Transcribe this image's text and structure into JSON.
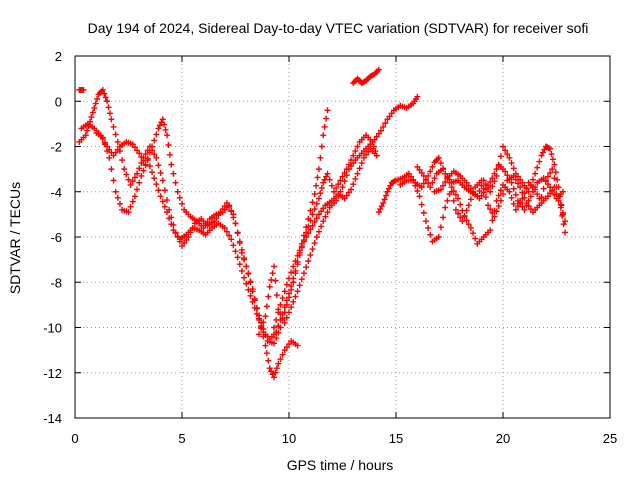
{
  "chart_data": {
    "type": "scatter",
    "title": "Day 194 of 2024, Sidereal Day-to-day VTEC variation (SDTVAR) for receiver sofi",
    "xlabel": "GPS time / hours",
    "ylabel": "SDTVAR / TECUs",
    "xlim": [
      0,
      25
    ],
    "ylim": [
      -14,
      2
    ],
    "xticks": [
      "0",
      "5",
      "10",
      "15",
      "20",
      "25"
    ],
    "yticks": [
      "2",
      "0",
      "-2",
      "-4",
      "-6",
      "-8",
      "-10",
      "-12",
      "-14"
    ],
    "grid": true,
    "marker": "+",
    "series": [
      {
        "color": "#ff0000",
        "points": [
          [
            0.2,
            0.5
          ],
          [
            0.4,
            0.5
          ]
        ]
      },
      {
        "color": "#ff0000",
        "points": [
          [
            0.2,
            -1.8
          ],
          [
            0.5,
            -1.5
          ],
          [
            0.7,
            -0.9
          ],
          [
            0.9,
            -0.3
          ],
          [
            1.1,
            0.3
          ],
          [
            1.3,
            0.5
          ],
          [
            1.5,
            0.0
          ],
          [
            1.7,
            -0.8
          ],
          [
            2.0,
            -1.8
          ],
          [
            2.3,
            -3.0
          ],
          [
            2.6,
            -3.7
          ],
          [
            2.9,
            -3.2
          ],
          [
            3.2,
            -2.5
          ],
          [
            3.5,
            -2.0
          ],
          [
            3.8,
            -2.5
          ],
          [
            4.1,
            -3.5
          ],
          [
            4.4,
            -4.8
          ],
          [
            4.7,
            -5.8
          ],
          [
            5.0,
            -6.4
          ],
          [
            5.3,
            -6.0
          ],
          [
            5.6,
            -5.4
          ],
          [
            5.9,
            -5.2
          ],
          [
            6.2,
            -5.5
          ],
          [
            6.5,
            -5.3
          ],
          [
            6.8,
            -4.9
          ],
          [
            7.1,
            -4.5
          ],
          [
            7.4,
            -5.0
          ],
          [
            7.7,
            -6.2
          ],
          [
            8.0,
            -7.3
          ],
          [
            8.3,
            -8.3
          ],
          [
            8.6,
            -9.6
          ],
          [
            8.9,
            -10.8
          ],
          [
            9.1,
            -11.8
          ],
          [
            9.3,
            -12.2
          ],
          [
            9.5,
            -11.6
          ],
          [
            9.8,
            -11.0
          ],
          [
            10.1,
            -10.6
          ],
          [
            10.4,
            -10.8
          ]
        ]
      },
      {
        "color": "#ff0000",
        "points": [
          [
            0.3,
            -1.2
          ],
          [
            0.6,
            -1.0
          ],
          [
            0.9,
            -1.2
          ],
          [
            1.2,
            -1.5
          ],
          [
            1.5,
            -2.0
          ],
          [
            1.8,
            -2.4
          ],
          [
            2.1,
            -2.0
          ],
          [
            2.4,
            -1.8
          ],
          [
            2.7,
            -1.9
          ],
          [
            3.0,
            -2.3
          ],
          [
            3.3,
            -2.8
          ],
          [
            3.6,
            -2.0
          ],
          [
            3.9,
            -1.2
          ],
          [
            4.1,
            -0.8
          ],
          [
            4.3,
            -1.5
          ],
          [
            4.5,
            -2.8
          ],
          [
            4.8,
            -4.0
          ],
          [
            5.1,
            -4.8
          ],
          [
            5.4,
            -5.1
          ],
          [
            5.7,
            -5.3
          ],
          [
            6.0,
            -5.6
          ],
          [
            6.3,
            -5.2
          ],
          [
            6.6,
            -5.0
          ],
          [
            6.9,
            -4.9
          ],
          [
            7.2,
            -4.6
          ],
          [
            7.5,
            -5.4
          ],
          [
            7.8,
            -6.7
          ],
          [
            8.1,
            -7.6
          ],
          [
            8.4,
            -8.8
          ],
          [
            8.7,
            -9.8
          ],
          [
            9.0,
            -10.6
          ],
          [
            9.3,
            -10.7
          ],
          [
            9.6,
            -10.0
          ],
          [
            9.9,
            -9.0
          ],
          [
            10.2,
            -8.0
          ],
          [
            10.5,
            -6.8
          ],
          [
            10.8,
            -5.8
          ],
          [
            11.1,
            -5.0
          ],
          [
            11.4,
            -4.3
          ],
          [
            11.6,
            -3.6
          ],
          [
            11.8,
            -3.2
          ],
          [
            12.1,
            -4.0
          ],
          [
            12.4,
            -3.5
          ],
          [
            12.7,
            -3.0
          ],
          [
            13.0,
            -2.4
          ],
          [
            13.3,
            -1.8
          ],
          [
            13.6,
            -1.5
          ],
          [
            13.9,
            -1.8
          ],
          [
            14.1,
            -2.4
          ]
        ]
      },
      {
        "color": "#ff0000",
        "points": [
          [
            1.0,
            -1.4
          ],
          [
            1.3,
            -1.6
          ],
          [
            1.6,
            -2.5
          ],
          [
            1.9,
            -4.0
          ],
          [
            2.2,
            -4.8
          ],
          [
            2.5,
            -4.9
          ],
          [
            2.8,
            -4.2
          ],
          [
            3.1,
            -3.3
          ],
          [
            3.4,
            -2.6
          ],
          [
            3.7,
            -3.4
          ],
          [
            4.0,
            -4.2
          ],
          [
            4.3,
            -4.9
          ],
          [
            4.6,
            -5.7
          ],
          [
            4.9,
            -6.1
          ],
          [
            5.2,
            -5.9
          ],
          [
            5.5,
            -5.6
          ],
          [
            5.8,
            -5.7
          ],
          [
            6.1,
            -5.9
          ],
          [
            6.4,
            -5.6
          ],
          [
            6.7,
            -5.4
          ],
          [
            7.0,
            -5.6
          ],
          [
            7.3,
            -6.1
          ],
          [
            7.6,
            -6.9
          ],
          [
            7.9,
            -7.8
          ],
          [
            8.2,
            -8.6
          ],
          [
            8.5,
            -9.4
          ],
          [
            8.8,
            -10.2
          ],
          [
            9.1,
            -10.5
          ],
          [
            9.4,
            -10.2
          ],
          [
            9.7,
            -9.4
          ],
          [
            10.0,
            -8.5
          ],
          [
            10.3,
            -7.5
          ],
          [
            10.6,
            -6.3
          ],
          [
            10.9,
            -5.2
          ],
          [
            11.2,
            -4.1
          ],
          [
            11.4,
            -3.0
          ],
          [
            11.6,
            -1.5
          ],
          [
            11.8,
            -0.4
          ]
        ]
      },
      {
        "color": "#ff0000",
        "points": [
          [
            8.6,
            -10.3
          ],
          [
            8.9,
            -9.5
          ],
          [
            9.1,
            -8.2
          ],
          [
            9.3,
            -7.3
          ],
          [
            9.5,
            -9.2
          ],
          [
            9.8,
            -9.8
          ],
          [
            10.1,
            -9.1
          ],
          [
            10.4,
            -8.4
          ],
          [
            10.7,
            -7.6
          ],
          [
            11.0,
            -6.8
          ],
          [
            11.3,
            -6.0
          ],
          [
            11.6,
            -5.3
          ],
          [
            11.9,
            -4.7
          ],
          [
            12.2,
            -4.4
          ],
          [
            12.5,
            -3.8
          ],
          [
            12.8,
            -3.0
          ],
          [
            13.1,
            -2.6
          ],
          [
            13.4,
            -2.3
          ],
          [
            13.7,
            -2.0
          ],
          [
            14.0,
            -1.7
          ],
          [
            14.3,
            -1.3
          ],
          [
            14.6,
            -0.8
          ],
          [
            14.9,
            -0.4
          ],
          [
            15.2,
            -0.2
          ],
          [
            15.5,
            -0.3
          ],
          [
            15.8,
            -0.1
          ],
          [
            16.0,
            0.2
          ]
        ]
      },
      {
        "color": "#ff0000",
        "points": [
          [
            9.3,
            -10.0
          ],
          [
            9.6,
            -9.0
          ],
          [
            9.9,
            -8.1
          ],
          [
            10.2,
            -7.3
          ],
          [
            10.5,
            -6.6
          ],
          [
            10.8,
            -6.0
          ],
          [
            11.1,
            -5.5
          ],
          [
            11.4,
            -5.0
          ],
          [
            11.7,
            -4.6
          ],
          [
            12.0,
            -4.4
          ],
          [
            12.3,
            -4.1
          ],
          [
            12.6,
            -4.3
          ],
          [
            12.9,
            -3.9
          ],
          [
            13.2,
            -3.2
          ],
          [
            13.5,
            -2.5
          ],
          [
            13.8,
            -2.1
          ],
          [
            14.1,
            -2.4
          ]
        ]
      },
      {
        "color": "#ff0000",
        "points": [
          [
            13.0,
            0.8
          ],
          [
            13.2,
            1.0
          ],
          [
            13.4,
            0.8
          ],
          [
            13.6,
            0.9
          ],
          [
            13.8,
            1.1
          ],
          [
            14.0,
            1.2
          ],
          [
            14.2,
            1.4
          ]
        ]
      },
      {
        "color": "#ff0000",
        "points": [
          [
            14.2,
            -4.9
          ],
          [
            14.4,
            -4.5
          ],
          [
            14.6,
            -4.0
          ],
          [
            14.8,
            -3.6
          ],
          [
            15.0,
            -3.5
          ],
          [
            15.3,
            -3.4
          ],
          [
            15.6,
            -3.2
          ],
          [
            15.9,
            -3.6
          ],
          [
            16.2,
            -3.8
          ],
          [
            16.5,
            -3.3
          ],
          [
            16.8,
            -2.7
          ],
          [
            17.0,
            -2.5
          ],
          [
            17.3,
            -3.2
          ],
          [
            17.6,
            -3.6
          ],
          [
            17.9,
            -3.5
          ],
          [
            18.2,
            -3.8
          ],
          [
            18.5,
            -4.0
          ],
          [
            18.8,
            -4.2
          ],
          [
            19.1,
            -3.5
          ],
          [
            19.4,
            -4.0
          ],
          [
            19.7,
            -3.3
          ],
          [
            20.0,
            -2.0
          ],
          [
            20.3,
            -2.5
          ],
          [
            20.6,
            -3.2
          ],
          [
            20.9,
            -3.6
          ],
          [
            21.2,
            -4.0
          ],
          [
            21.5,
            -3.2
          ],
          [
            21.8,
            -2.4
          ],
          [
            22.0,
            -2.0
          ],
          [
            22.2,
            -2.1
          ],
          [
            22.4,
            -2.8
          ],
          [
            22.6,
            -3.8
          ],
          [
            22.8,
            -5.0
          ]
        ]
      },
      {
        "color": "#ff0000",
        "points": [
          [
            15.2,
            -3.7
          ],
          [
            15.5,
            -3.5
          ],
          [
            15.8,
            -3.5
          ],
          [
            16.1,
            -4.2
          ],
          [
            16.4,
            -5.3
          ],
          [
            16.7,
            -6.2
          ],
          [
            17.0,
            -6.0
          ],
          [
            17.3,
            -4.7
          ],
          [
            17.6,
            -3.8
          ],
          [
            17.9,
            -4.3
          ],
          [
            18.2,
            -5.1
          ],
          [
            18.5,
            -5.6
          ],
          [
            18.8,
            -6.3
          ],
          [
            19.1,
            -6.0
          ],
          [
            19.4,
            -5.7
          ],
          [
            19.7,
            -4.4
          ],
          [
            20.0,
            -3.7
          ],
          [
            20.3,
            -4.0
          ],
          [
            20.6,
            -4.8
          ],
          [
            20.9,
            -4.3
          ],
          [
            21.2,
            -3.6
          ],
          [
            21.5,
            -3.9
          ],
          [
            21.8,
            -4.5
          ],
          [
            22.1,
            -4.2
          ],
          [
            22.4,
            -3.8
          ],
          [
            22.7,
            -4.7
          ],
          [
            22.9,
            -5.8
          ]
        ]
      },
      {
        "color": "#ff0000",
        "points": [
          [
            16.0,
            -2.9
          ],
          [
            16.3,
            -3.3
          ],
          [
            16.6,
            -3.8
          ],
          [
            16.9,
            -3.2
          ],
          [
            17.2,
            -3.0
          ],
          [
            17.5,
            -3.6
          ],
          [
            17.8,
            -4.8
          ],
          [
            18.1,
            -5.3
          ],
          [
            18.4,
            -4.6
          ],
          [
            18.7,
            -3.8
          ],
          [
            19.0,
            -3.5
          ],
          [
            19.3,
            -4.6
          ],
          [
            19.6,
            -5.1
          ],
          [
            19.9,
            -4.4
          ],
          [
            20.2,
            -3.5
          ],
          [
            20.5,
            -3.3
          ],
          [
            20.8,
            -3.8
          ],
          [
            21.1,
            -4.5
          ],
          [
            21.4,
            -4.9
          ],
          [
            21.7,
            -4.6
          ],
          [
            22.0,
            -3.5
          ],
          [
            22.3,
            -3.0
          ],
          [
            22.6,
            -4.2
          ],
          [
            22.9,
            -5.3
          ]
        ]
      },
      {
        "color": "#ff0000",
        "points": [
          [
            16.8,
            -4.0
          ],
          [
            17.1,
            -3.9
          ],
          [
            17.4,
            -3.4
          ],
          [
            17.7,
            -3.1
          ],
          [
            18.0,
            -3.3
          ],
          [
            18.3,
            -3.6
          ],
          [
            18.6,
            -4.0
          ],
          [
            18.9,
            -4.3
          ],
          [
            19.2,
            -3.9
          ],
          [
            19.5,
            -3.4
          ],
          [
            19.8,
            -2.8
          ],
          [
            20.1,
            -3.1
          ],
          [
            20.4,
            -3.6
          ],
          [
            20.7,
            -4.4
          ],
          [
            21.0,
            -4.8
          ],
          [
            21.3,
            -4.2
          ],
          [
            21.6,
            -3.6
          ],
          [
            21.9,
            -3.4
          ],
          [
            22.2,
            -3.8
          ],
          [
            22.5,
            -4.3
          ],
          [
            22.8,
            -4.0
          ]
        ]
      }
    ]
  }
}
